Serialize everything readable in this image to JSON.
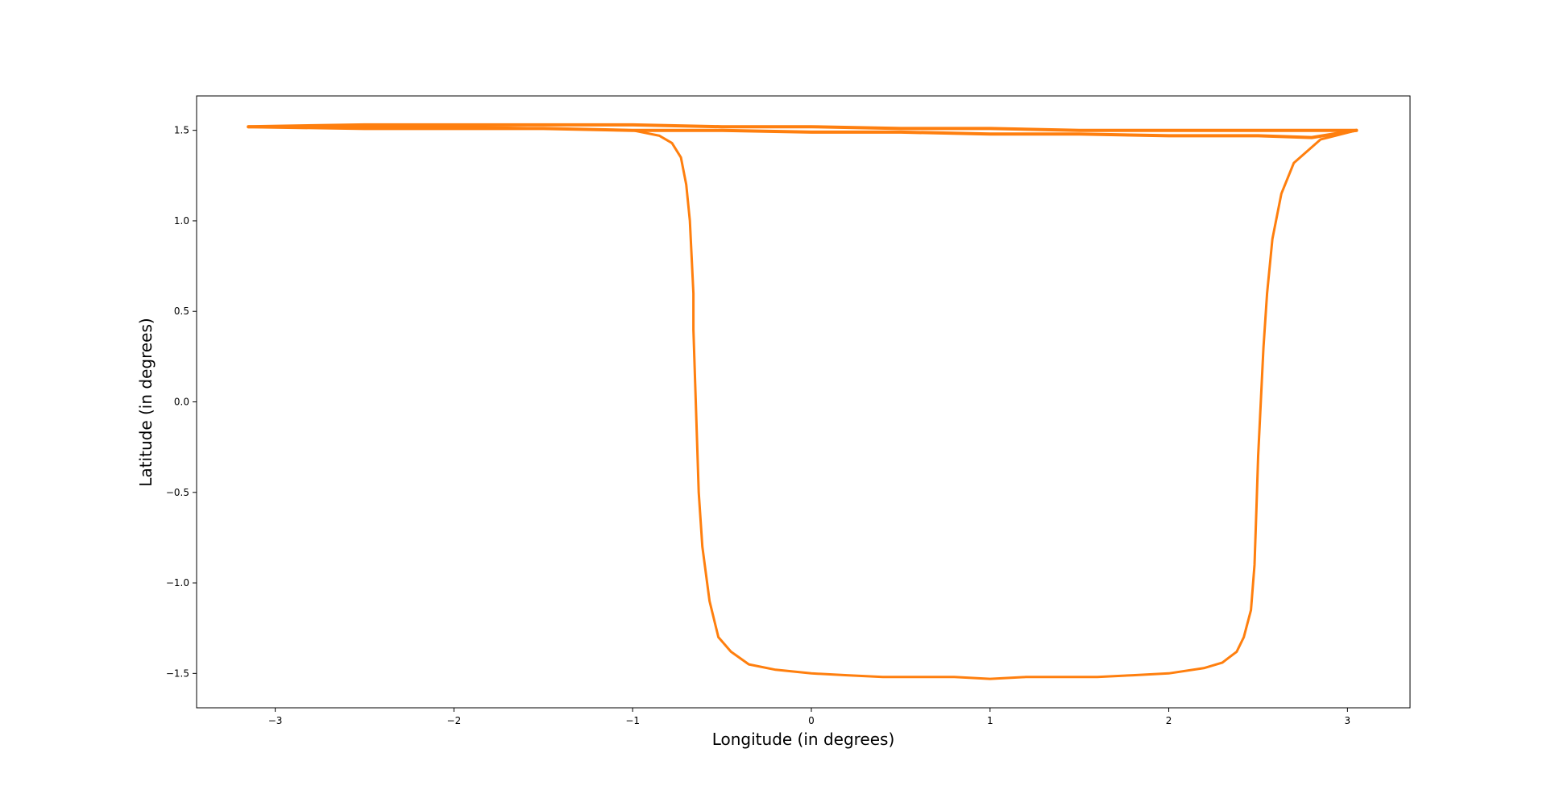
{
  "chart_data": {
    "type": "line",
    "title": "",
    "xlabel": "Longitude (in degrees)",
    "ylabel": "Latitude (in degrees)",
    "xlim": [
      -3.44,
      3.35
    ],
    "ylim": [
      -1.69,
      1.69
    ],
    "xticks": [
      -3,
      -2,
      -1,
      0,
      1,
      2,
      3
    ],
    "xtick_labels": [
      "−3",
      "−2",
      "−1",
      "0",
      "1",
      "2",
      "3"
    ],
    "yticks": [
      -1.5,
      -1.0,
      -0.5,
      0.0,
      0.5,
      1.0,
      1.5
    ],
    "ytick_labels": [
      "−1.5",
      "−1.0",
      "−0.5",
      "0.0",
      "0.5",
      "1.0",
      "1.5"
    ],
    "grid": false,
    "legend": "none",
    "line_color": "#ff7f0e",
    "series": [
      {
        "x": [
          3.05,
          2.85,
          2.7,
          2.63,
          2.58,
          2.55,
          2.53,
          2.52,
          2.51,
          2.5,
          2.49,
          2.48,
          2.46,
          2.42,
          2.38,
          2.3,
          2.2,
          2.0,
          1.8,
          1.6,
          1.4,
          1.2,
          1.0,
          0.8,
          0.6,
          0.4,
          0.2,
          0.0,
          -0.2,
          -0.35,
          -0.45,
          -0.52,
          -0.57,
          -0.61,
          -0.63,
          -0.64,
          -0.65,
          -0.66,
          -0.66,
          -0.67,
          -0.68,
          -0.7,
          -0.73,
          -0.78,
          -0.85,
          -1.0,
          -1.5,
          -2.0,
          -2.5,
          -3.0,
          -3.15
        ],
        "y": [
          1.5,
          1.45,
          1.32,
          1.15,
          0.9,
          0.6,
          0.3,
          0.1,
          -0.1,
          -0.3,
          -0.6,
          -0.9,
          -1.15,
          -1.3,
          -1.38,
          -1.44,
          -1.47,
          -1.5,
          -1.51,
          -1.52,
          -1.52,
          -1.52,
          -1.53,
          -1.52,
          -1.52,
          -1.52,
          -1.51,
          -1.5,
          -1.48,
          -1.45,
          -1.38,
          -1.3,
          -1.1,
          -0.8,
          -0.5,
          -0.2,
          0.1,
          0.4,
          0.6,
          0.8,
          1.0,
          1.2,
          1.35,
          1.43,
          1.47,
          1.5,
          1.51,
          1.52,
          1.52,
          1.52,
          1.52
        ]
      },
      {
        "x": [
          -3.15,
          -2.5,
          -2.0,
          -1.5,
          -1.0,
          -0.5,
          0.0,
          0.5,
          1.0,
          1.5,
          2.0,
          2.5,
          2.8,
          3.05
        ],
        "y": [
          1.52,
          1.53,
          1.53,
          1.53,
          1.53,
          1.52,
          1.52,
          1.51,
          1.51,
          1.5,
          1.5,
          1.5,
          1.5,
          1.5
        ]
      },
      {
        "x": [
          -3.15,
          -2.5,
          -2.0,
          -1.5,
          -1.0,
          -0.5,
          0.0,
          0.5,
          1.0,
          1.5,
          2.0,
          2.5,
          2.8,
          3.05
        ],
        "y": [
          1.52,
          1.51,
          1.51,
          1.51,
          1.5,
          1.5,
          1.49,
          1.49,
          1.48,
          1.48,
          1.47,
          1.47,
          1.46,
          1.5
        ]
      }
    ]
  }
}
